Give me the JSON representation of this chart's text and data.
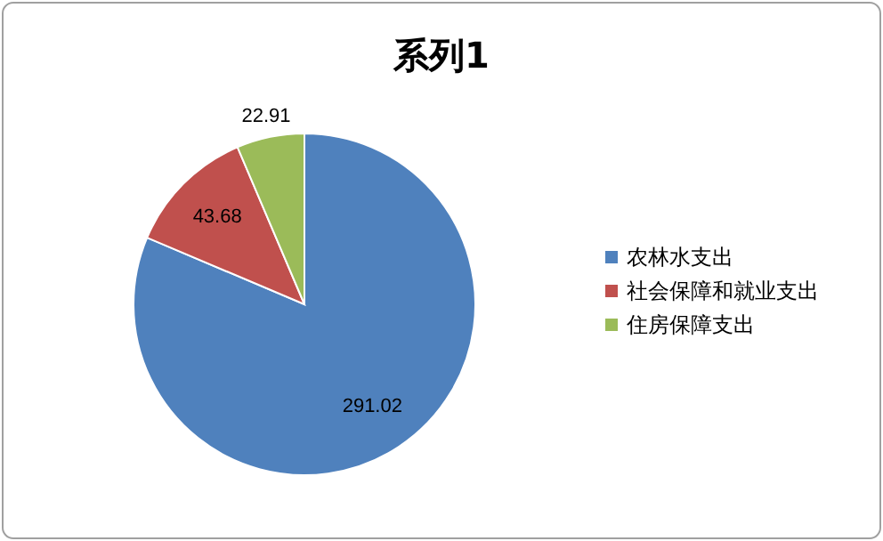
{
  "chart_data": {
    "type": "pie",
    "title": "系列1",
    "categories": [
      "农林水支出",
      "社会保障和就业支出",
      "住房保障支出"
    ],
    "values": [
      291.02,
      43.68,
      22.91
    ],
    "colors": [
      "#4f81bd",
      "#c0504d",
      "#9bbb59"
    ],
    "data_labels": true,
    "legend": "right"
  }
}
